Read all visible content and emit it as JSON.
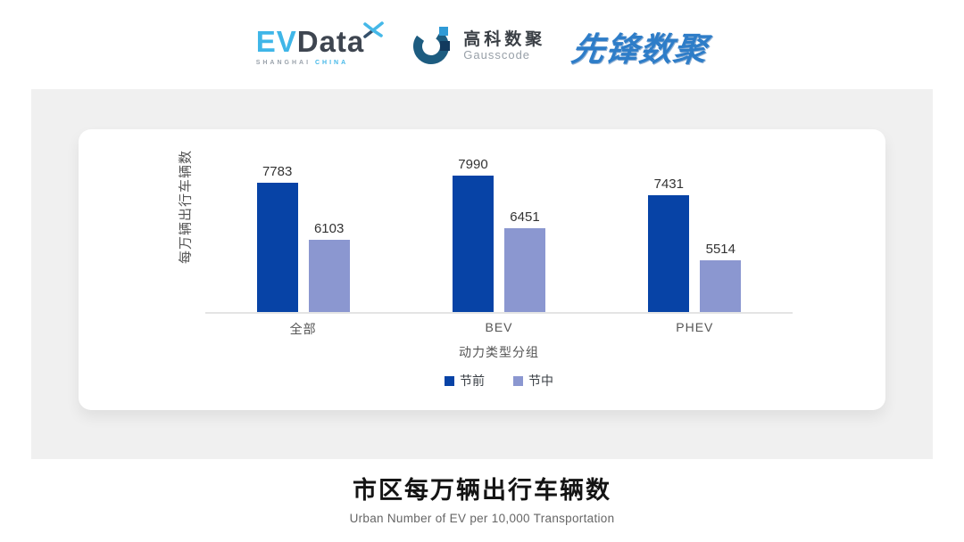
{
  "header": {
    "evdata": {
      "ev": "EV",
      "data": "Data",
      "sub_left": "SHANGHAI",
      "sub_right": "CHINA"
    },
    "gausscode": {
      "name_cn": "高科数聚",
      "name_en": "Gausscode"
    },
    "pioneer": {
      "name": "先锋数聚"
    }
  },
  "chart_data": {
    "type": "bar",
    "title": "市区每万辆出行车辆数",
    "categories": [
      "全部",
      "BEV",
      "PHEV"
    ],
    "series": [
      {
        "name": "节前",
        "color": "#0743a6",
        "values": [
          7783,
          7990,
          7431
        ]
      },
      {
        "name": "节中",
        "color": "#8b97d0",
        "values": [
          6103,
          6451,
          5514
        ]
      }
    ],
    "xlabel": "动力类型分组",
    "ylabel": "每万辆出行车辆数",
    "ylim": [
      4000,
      8500
    ],
    "grid": false,
    "legend_position": "bottom",
    "value_labels": true
  },
  "footer": {
    "title": "市区每万辆出行车辆数",
    "subtitle": "Urban Number of EV per 10,000 Transportation"
  },
  "colors": {
    "series_pre": "#0743a6",
    "series_mid": "#8b97d0",
    "panel_bg": "#f0f0f0",
    "card_bg": "#ffffff",
    "axis_line": "#e4e4e4",
    "evdata_blue": "#3fb6e8",
    "evdata_dark": "#3e4550",
    "gausscode_teal": "#1d5c80",
    "gausscode_bright": "#2f9ad6",
    "gausscode_navy": "#123a5e",
    "pioneer_blue": "#2e7dc8"
  }
}
